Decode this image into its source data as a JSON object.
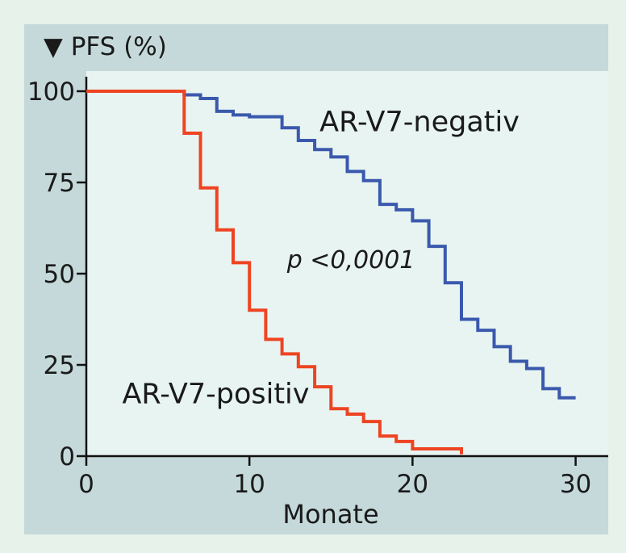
{
  "chart_data": {
    "type": "line",
    "step": true,
    "title": "▼ PFS (%)",
    "xlabel": "Monate",
    "ylabel": "",
    "xlim": [
      0,
      32
    ],
    "ylim": [
      0,
      100
    ],
    "x_ticks": [
      0,
      10,
      20,
      30
    ],
    "y_ticks": [
      0,
      25,
      50,
      75,
      100
    ],
    "grid": false,
    "annotations": [
      {
        "text": "p <0,0001",
        "x": 12.3,
        "y": 51.5
      }
    ],
    "series": [
      {
        "name": "AR-V7-negativ",
        "color": "#3a59ad",
        "label_anchor": {
          "x": 14.3,
          "y": 89
        },
        "points": [
          [
            0,
            100
          ],
          [
            6,
            100
          ],
          [
            6,
            99
          ],
          [
            7,
            99
          ],
          [
            7,
            98
          ],
          [
            8,
            98
          ],
          [
            8,
            94.5
          ],
          [
            9,
            94.5
          ],
          [
            9,
            93.5
          ],
          [
            10,
            93.5
          ],
          [
            10,
            93
          ],
          [
            12,
            93
          ],
          [
            12,
            90
          ],
          [
            13,
            90
          ],
          [
            13,
            86.5
          ],
          [
            14,
            86.5
          ],
          [
            14,
            84
          ],
          [
            15,
            84
          ],
          [
            15,
            82
          ],
          [
            16,
            82
          ],
          [
            16,
            78
          ],
          [
            17,
            78
          ],
          [
            17,
            75.5
          ],
          [
            18,
            75.5
          ],
          [
            18,
            69
          ],
          [
            19,
            69
          ],
          [
            19,
            67.5
          ],
          [
            20,
            67.5
          ],
          [
            20,
            64.5
          ],
          [
            21,
            64.5
          ],
          [
            21,
            57.5
          ],
          [
            22,
            57.5
          ],
          [
            22,
            47.5
          ],
          [
            23,
            47.5
          ],
          [
            23,
            37.5
          ],
          [
            24,
            37.5
          ],
          [
            24,
            34.5
          ],
          [
            25,
            34.5
          ],
          [
            25,
            30
          ],
          [
            26,
            30
          ],
          [
            26,
            26
          ],
          [
            27,
            26
          ],
          [
            27,
            24
          ],
          [
            28,
            24
          ],
          [
            28,
            18.5
          ],
          [
            29,
            18.5
          ],
          [
            29,
            16
          ],
          [
            30,
            16
          ]
        ]
      },
      {
        "name": "AR-V7-positiv",
        "color": "#ee4422",
        "label_anchor": {
          "x": 2.2,
          "y": 14.5
        },
        "points": [
          [
            0,
            100
          ],
          [
            6,
            100
          ],
          [
            6,
            88.5
          ],
          [
            7,
            88.5
          ],
          [
            7,
            73.5
          ],
          [
            8,
            73.5
          ],
          [
            8,
            62
          ],
          [
            9,
            62
          ],
          [
            9,
            53
          ],
          [
            10,
            53
          ],
          [
            10,
            40
          ],
          [
            11,
            40
          ],
          [
            11,
            32
          ],
          [
            12,
            32
          ],
          [
            12,
            28
          ],
          [
            13,
            28
          ],
          [
            13,
            24.5
          ],
          [
            14,
            24.5
          ],
          [
            14,
            19
          ],
          [
            15,
            19
          ],
          [
            15,
            13
          ],
          [
            16,
            13
          ],
          [
            16,
            11.5
          ],
          [
            17,
            11.5
          ],
          [
            17,
            9.5
          ],
          [
            18,
            9.5
          ],
          [
            18,
            5.5
          ],
          [
            19,
            5.5
          ],
          [
            19,
            4
          ],
          [
            20,
            4
          ],
          [
            20,
            2
          ],
          [
            23,
            2
          ],
          [
            23,
            0.5
          ]
        ]
      }
    ]
  }
}
